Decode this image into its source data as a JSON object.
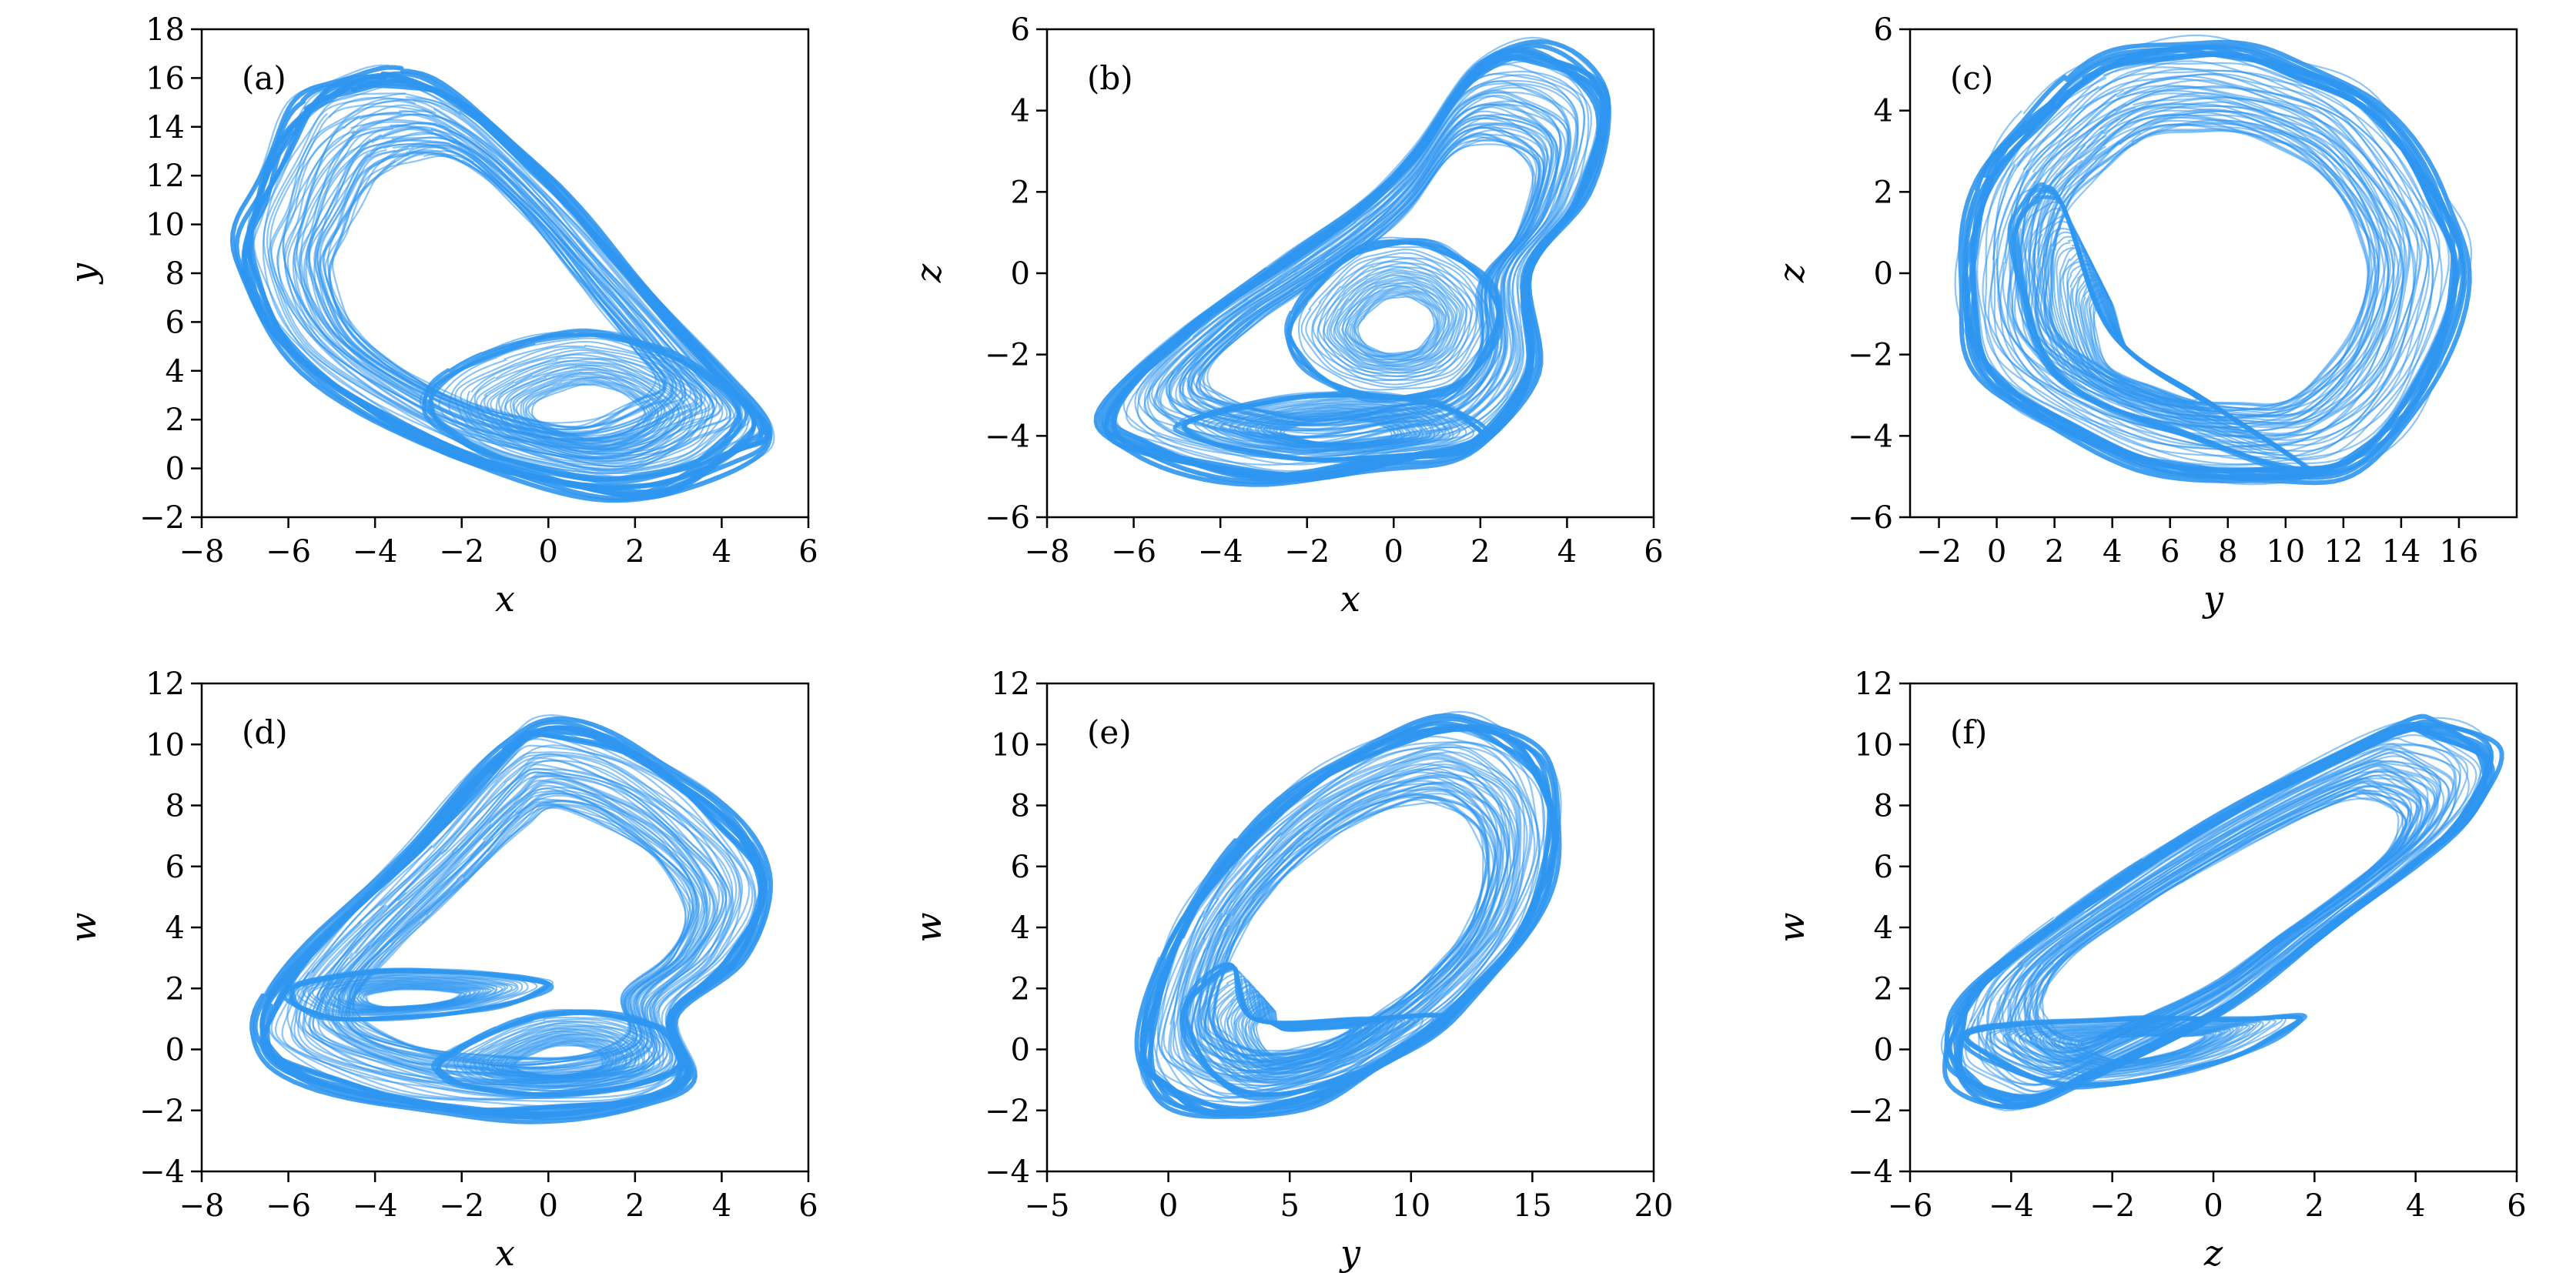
{
  "figure": {
    "line_color": "#2F96F0"
  },
  "chart_data": [
    {
      "type": "line",
      "panel_label": "(a)",
      "xlabel": "x",
      "ylabel": "y",
      "xlim": [
        -8,
        6
      ],
      "ylim": [
        -2,
        18
      ],
      "xticks": [
        -8,
        -6,
        -4,
        -2,
        0,
        2,
        4,
        6
      ],
      "yticks": [
        -2,
        0,
        2,
        4,
        6,
        8,
        10,
        12,
        14,
        16,
        18
      ],
      "xtick_labels": [
        "−8",
        "−6",
        "−4",
        "−2",
        "0",
        "2",
        "4",
        "6"
      ],
      "ytick_labels": [
        "−2",
        "0",
        "2",
        "4",
        "6",
        "8",
        "10",
        "12",
        "14",
        "16",
        "18"
      ],
      "attractor": {
        "outer": [
          [
            -6.0,
            14.5
          ],
          [
            -5.0,
            15.9
          ],
          [
            -3.5,
            16.3
          ],
          [
            -2.0,
            15.2
          ],
          [
            0.0,
            12.0
          ],
          [
            2.0,
            8.0
          ],
          [
            4.0,
            4.0
          ],
          [
            5.2,
            1.5
          ],
          [
            4.5,
            0.3
          ],
          [
            2.5,
            -1.3
          ],
          [
            0.0,
            -0.8
          ],
          [
            -3.0,
            1.0
          ],
          [
            -6.0,
            4.5
          ],
          [
            -7.2,
            8.5
          ],
          [
            -6.8,
            11.5
          ]
        ],
        "inner_regions": [
          [
            [
              -2.8,
              3.3
            ],
            [
              0.0,
              5.5
            ],
            [
              2.5,
              5.0
            ],
            [
              4.5,
              2.5
            ],
            [
              3.5,
              0.2
            ],
            [
              1.0,
              -0.5
            ],
            [
              -2.0,
              1.0
            ]
          ]
        ]
      }
    },
    {
      "type": "line",
      "panel_label": "(b)",
      "xlabel": "x",
      "ylabel": "z",
      "xlim": [
        -8,
        6
      ],
      "ylim": [
        -6,
        6
      ],
      "xticks": [
        -8,
        -6,
        -4,
        -2,
        0,
        2,
        4,
        6
      ],
      "yticks": [
        -6,
        -4,
        -2,
        0,
        2,
        4,
        6
      ],
      "xtick_labels": [
        "−8",
        "−6",
        "−4",
        "−2",
        "0",
        "2",
        "4",
        "6"
      ],
      "ytick_labels": [
        "−6",
        "−4",
        "−2",
        "0",
        "2",
        "4",
        "6"
      ],
      "attractor": {
        "outer": [
          [
            -6.8,
            -3.5
          ],
          [
            -5.0,
            -1.5
          ],
          [
            -3.0,
            0.0
          ],
          [
            -1.0,
            1.5
          ],
          [
            0.5,
            3.0
          ],
          [
            2.0,
            5.2
          ],
          [
            3.5,
            5.6
          ],
          [
            5.0,
            4.5
          ],
          [
            4.5,
            2.0
          ],
          [
            3.2,
            0.0
          ],
          [
            3.3,
            -2.5
          ],
          [
            2.0,
            -4.3
          ],
          [
            0.0,
            -4.8
          ],
          [
            -3.0,
            -5.2
          ],
          [
            -6.0,
            -4.5
          ]
        ],
        "inner_regions": [
          [
            [
              -2.5,
              -1.5
            ],
            [
              -1.0,
              0.5
            ],
            [
              1.0,
              0.7
            ],
            [
              2.5,
              -0.8
            ],
            [
              1.5,
              -2.8
            ],
            [
              -1.0,
              -3.0
            ]
          ],
          [
            [
              -5.0,
              -3.8
            ],
            [
              -2.0,
              -3.0
            ],
            [
              1.0,
              -3.2
            ],
            [
              2.0,
              -4.2
            ],
            [
              -2.0,
              -4.6
            ]
          ]
        ]
      }
    },
    {
      "type": "line",
      "panel_label": "(c)",
      "xlabel": "y",
      "ylabel": "z",
      "xlim": [
        -3,
        18
      ],
      "ylim": [
        -6,
        6
      ],
      "xticks": [
        -2,
        0,
        2,
        4,
        6,
        8,
        10,
        12,
        14,
        16
      ],
      "yticks": [
        -6,
        -4,
        -2,
        0,
        2,
        4,
        6
      ],
      "xtick_labels": [
        "−2",
        "0",
        "2",
        "4",
        "6",
        "8",
        "10",
        "12",
        "14",
        "16"
      ],
      "ytick_labels": [
        "−6",
        "−4",
        "−2",
        "0",
        "2",
        "4",
        "6"
      ],
      "attractor": {
        "outer": [
          [
            -1.3,
            0.0
          ],
          [
            -0.5,
            2.5
          ],
          [
            1.5,
            4.2
          ],
          [
            4.0,
            5.4
          ],
          [
            7.0,
            5.7
          ],
          [
            10.0,
            5.3
          ],
          [
            13.0,
            4.3
          ],
          [
            15.5,
            2.0
          ],
          [
            16.3,
            0.0
          ],
          [
            15.0,
            -3.0
          ],
          [
            12.5,
            -4.8
          ],
          [
            9.5,
            -5.2
          ],
          [
            5.0,
            -4.8
          ],
          [
            1.0,
            -3.5
          ],
          [
            -1.0,
            -2.0
          ]
        ],
        "inner_regions": [
          [
            [
              0.5,
              1.0
            ],
            [
              2.0,
              2.0
            ],
            [
              4.0,
              -1.5
            ],
            [
              8.0,
              -3.5
            ],
            [
              11.0,
              -5.0
            ],
            [
              6.5,
              -4.0
            ],
            [
              2.0,
              -2.5
            ]
          ]
        ]
      }
    },
    {
      "type": "line",
      "panel_label": "(d)",
      "xlabel": "x",
      "ylabel": "w",
      "xlim": [
        -8,
        6
      ],
      "ylim": [
        -4,
        12
      ],
      "xticks": [
        -8,
        -6,
        -4,
        -2,
        0,
        2,
        4,
        6
      ],
      "yticks": [
        -4,
        -2,
        0,
        2,
        4,
        6,
        8,
        10,
        12
      ],
      "xtick_labels": [
        "−8",
        "−6",
        "−4",
        "−2",
        "0",
        "2",
        "4",
        "6"
      ],
      "ytick_labels": [
        "−4",
        "−2",
        "0",
        "2",
        "4",
        "6",
        "8",
        "10",
        "12"
      ],
      "attractor": {
        "outer": [
          [
            -6.8,
            1.0
          ],
          [
            -5.5,
            3.5
          ],
          [
            -3.0,
            7.0
          ],
          [
            -1.0,
            10.0
          ],
          [
            0.0,
            10.8
          ],
          [
            2.0,
            10.0
          ],
          [
            4.0,
            8.0
          ],
          [
            5.2,
            5.5
          ],
          [
            4.5,
            3.0
          ],
          [
            3.0,
            1.0
          ],
          [
            3.3,
            -1.0
          ],
          [
            2.0,
            -2.0
          ],
          [
            -1.0,
            -2.3
          ],
          [
            -4.0,
            -1.8
          ],
          [
            -6.5,
            -0.5
          ]
        ],
        "inner_regions": [
          [
            [
              -2.5,
              -0.3
            ],
            [
              0.0,
              1.2
            ],
            [
              2.5,
              0.8
            ],
            [
              3.0,
              -0.7
            ],
            [
              0.5,
              -1.5
            ],
            [
              -2.0,
              -1.2
            ]
          ],
          [
            [
              -6.0,
              2.0
            ],
            [
              -3.5,
              2.6
            ],
            [
              0.0,
              2.2
            ],
            [
              -1.5,
              1.3
            ],
            [
              -5.0,
              1.0
            ]
          ]
        ]
      }
    },
    {
      "type": "line",
      "panel_label": "(e)",
      "xlabel": "y",
      "ylabel": "w",
      "xlim": [
        -5,
        20
      ],
      "ylim": [
        -4,
        12
      ],
      "xticks": [
        -5,
        0,
        5,
        10,
        15,
        20
      ],
      "yticks": [
        -4,
        -2,
        0,
        2,
        4,
        6,
        8,
        10,
        12
      ],
      "xtick_labels": [
        "−5",
        "0",
        "5",
        "10",
        "15",
        "20"
      ],
      "ytick_labels": [
        "−4",
        "−2",
        "0",
        "2",
        "4",
        "6",
        "8",
        "10",
        "12"
      ],
      "attractor": {
        "outer": [
          [
            -1.3,
            0.0
          ],
          [
            0.0,
            3.5
          ],
          [
            2.5,
            6.5
          ],
          [
            6.0,
            9.0
          ],
          [
            10.0,
            10.6
          ],
          [
            13.0,
            10.8
          ],
          [
            15.5,
            9.5
          ],
          [
            16.2,
            7.0
          ],
          [
            15.0,
            4.0
          ],
          [
            12.0,
            1.2
          ],
          [
            9.0,
            -0.5
          ],
          [
            6.0,
            -1.8
          ],
          [
            2.0,
            -2.3
          ],
          [
            -0.5,
            -1.5
          ]
        ],
        "inner_regions": [
          [
            [
              0.5,
              1.0
            ],
            [
              2.5,
              2.8
            ],
            [
              3.5,
              1.0
            ],
            [
              8.0,
              1.0
            ],
            [
              11.5,
              1.0
            ],
            [
              8.0,
              -0.8
            ],
            [
              3.0,
              -1.5
            ]
          ]
        ]
      }
    },
    {
      "type": "line",
      "panel_label": "(f)",
      "xlabel": "z",
      "ylabel": "w",
      "xlim": [
        -6,
        6
      ],
      "ylim": [
        -4,
        12
      ],
      "xticks": [
        -6,
        -4,
        -2,
        0,
        2,
        4,
        6
      ],
      "yticks": [
        -4,
        -2,
        0,
        2,
        4,
        6,
        8,
        10,
        12
      ],
      "xtick_labels": [
        "−6",
        "−4",
        "−2",
        "0",
        "2",
        "4",
        "6"
      ],
      "ytick_labels": [
        "−4",
        "−2",
        "0",
        "2",
        "4",
        "6",
        "8",
        "10",
        "12"
      ],
      "attractor": {
        "outer": [
          [
            -5.3,
            0.5
          ],
          [
            -4.5,
            2.5
          ],
          [
            -2.0,
            5.5
          ],
          [
            1.0,
            8.5
          ],
          [
            3.5,
            10.5
          ],
          [
            4.5,
            10.8
          ],
          [
            5.6,
            9.8
          ],
          [
            5.3,
            8.0
          ],
          [
            4.0,
            6.0
          ],
          [
            2.0,
            3.5
          ],
          [
            0.0,
            1.0
          ],
          [
            -2.5,
            -1.0
          ],
          [
            -4.0,
            -2.0
          ],
          [
            -5.2,
            -1.0
          ]
        ],
        "inner_regions": [
          [
            [
              -5.0,
              0.5
            ],
            [
              -2.0,
              1.0
            ],
            [
              0.5,
              1.0
            ],
            [
              1.8,
              1.0
            ],
            [
              0.0,
              -0.5
            ],
            [
              -3.0,
              -1.2
            ]
          ]
        ]
      }
    }
  ]
}
